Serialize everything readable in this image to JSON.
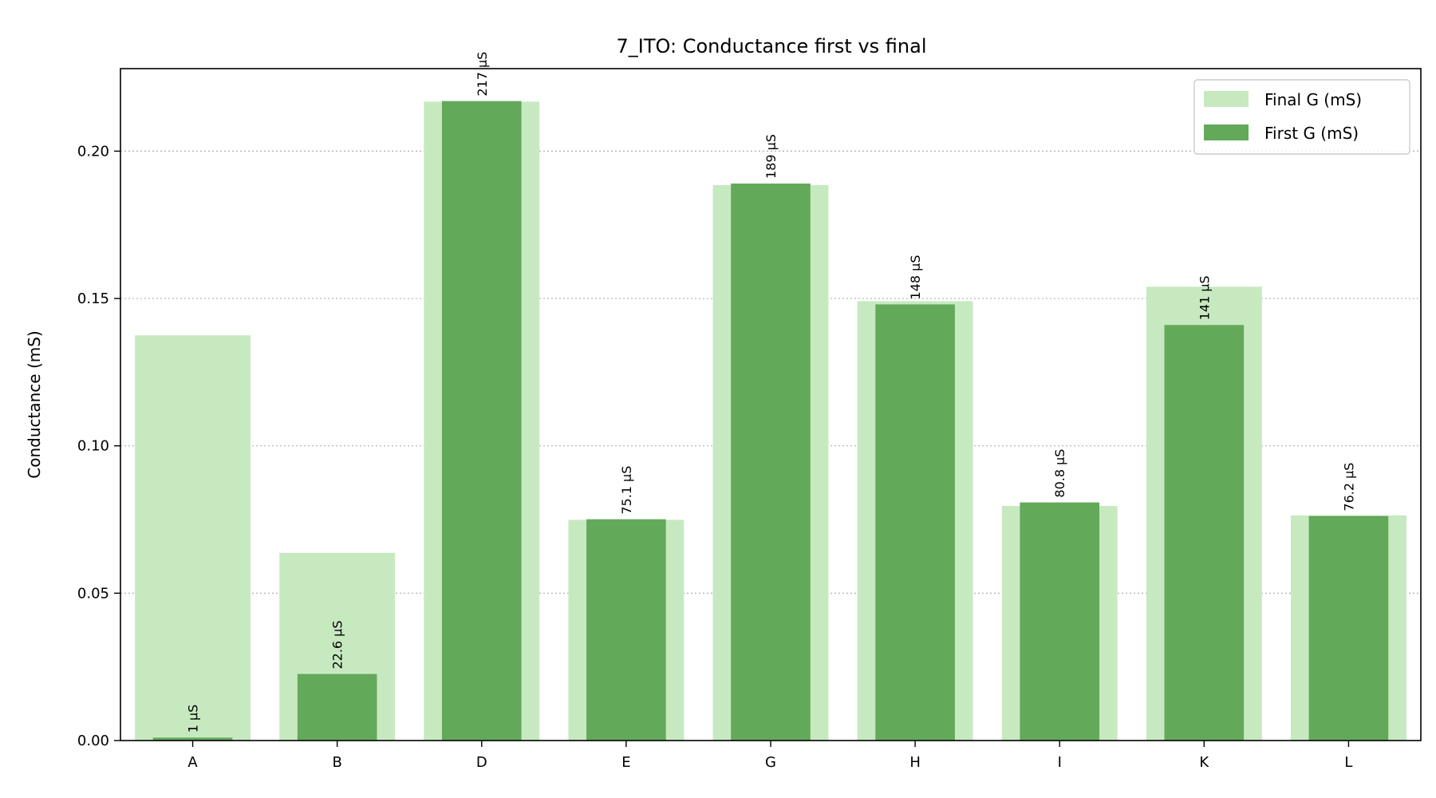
{
  "chart_data": {
    "type": "bar",
    "title": "7_ITO: Conductance first vs final",
    "xlabel": "",
    "ylabel": "Conductance (mS)",
    "ylim": [
      0,
      0.228
    ],
    "yticks": [
      0.0,
      0.05,
      0.1,
      0.15,
      0.2
    ],
    "ytick_labels": [
      "0.00",
      "0.05",
      "0.10",
      "0.15",
      "0.20"
    ],
    "grid": "horizontal-dotted",
    "legend_position": "top-right",
    "categories": [
      "A",
      "B",
      "D",
      "E",
      "G",
      "H",
      "I",
      "K",
      "L"
    ],
    "series": [
      {
        "name": "Final G (mS)",
        "color": "#c7e9c0",
        "values": [
          0.1375,
          0.0637,
          0.2168,
          0.0749,
          0.1885,
          0.1491,
          0.0796,
          0.154,
          0.0764
        ]
      },
      {
        "name": "First G (mS)",
        "color": "#63a95a",
        "values": [
          0.001,
          0.0226,
          0.217,
          0.0751,
          0.189,
          0.148,
          0.0808,
          0.141,
          0.0762
        ]
      }
    ],
    "bar_labels": [
      "1 µS",
      "22.6 µS",
      "217 µS",
      "75.1 µS",
      "189 µS",
      "148 µS",
      "80.8 µS",
      "141 µS",
      "76.2 µS"
    ]
  }
}
